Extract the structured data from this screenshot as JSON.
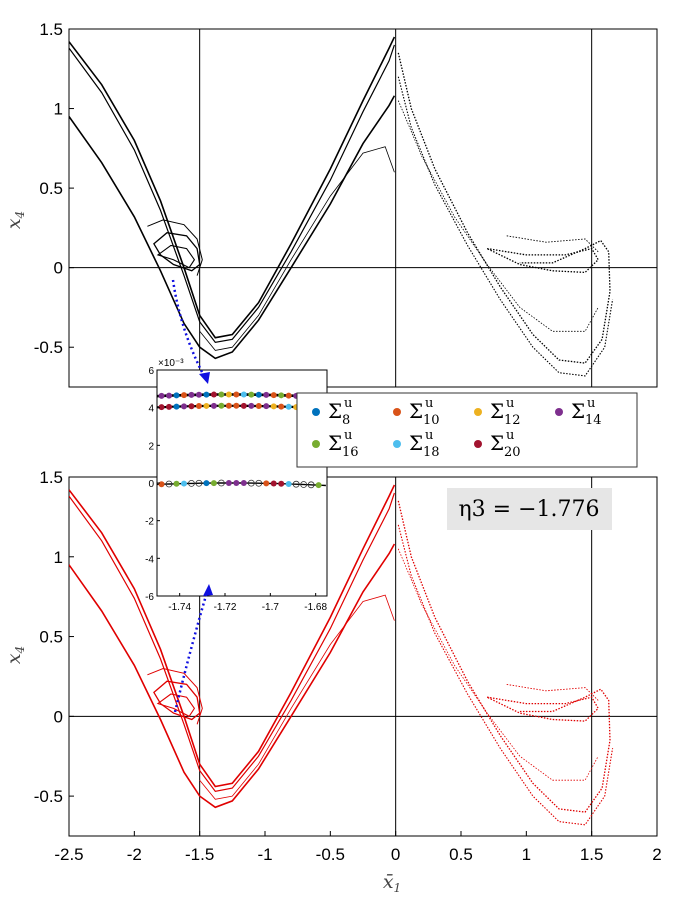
{
  "chart_data": [
    {
      "type": "scatter",
      "name": "top-panel",
      "color": "#000000",
      "xlim": [
        -2.5,
        2
      ],
      "ylim": [
        -0.75,
        1.5
      ],
      "ylabel": "x",
      "ylabel_sub": "4",
      "yticks": [
        "1.5",
        "1",
        "0.5",
        "0",
        "-0.5"
      ],
      "ytick_values": [
        1.5,
        1,
        0.5,
        0,
        -0.5
      ],
      "reference_lines": {
        "x": [
          -1.5,
          0,
          1.5
        ],
        "y": [
          0
        ]
      },
      "curves": [
        {
          "desc": "left outer strands",
          "points": [
            [
              -2.5,
              1.45
            ],
            [
              -2.2,
              1.05
            ],
            [
              -1.9,
              0.55
            ],
            [
              -1.7,
              0.1
            ],
            [
              -1.55,
              -0.2
            ],
            [
              -1.4,
              -0.45
            ],
            [
              -1.25,
              -0.42
            ],
            [
              -1.0,
              -0.15
            ],
            [
              -0.7,
              0.35
            ],
            [
              -0.4,
              0.85
            ],
            [
              -0.1,
              1.3
            ],
            [
              0.0,
              1.45
            ]
          ]
        },
        {
          "desc": "lower band",
          "points": [
            [
              -2.5,
              0.95
            ],
            [
              -2.2,
              0.62
            ],
            [
              -1.95,
              0.25
            ],
            [
              -1.75,
              -0.15
            ],
            [
              -1.55,
              -0.45
            ],
            [
              -1.4,
              -0.57
            ],
            [
              -1.2,
              -0.5
            ],
            [
              -0.9,
              -0.2
            ],
            [
              -0.6,
              0.2
            ],
            [
              -0.3,
              0.65
            ],
            [
              -0.05,
              1.05
            ],
            [
              0.0,
              1.1
            ]
          ]
        },
        {
          "desc": "right lobe",
          "points": [
            [
              0.0,
              1.3
            ],
            [
              0.2,
              0.75
            ],
            [
              0.5,
              0.25
            ],
            [
              0.8,
              -0.15
            ],
            [
              1.05,
              -0.45
            ],
            [
              1.25,
              -0.6
            ],
            [
              1.5,
              -0.58
            ],
            [
              1.6,
              -0.3
            ],
            [
              1.62,
              0.05
            ],
            [
              1.55,
              0.15
            ],
            [
              1.4,
              0.1
            ],
            [
              1.0,
              0.0
            ],
            [
              0.8,
              0.05
            ]
          ]
        }
      ]
    },
    {
      "type": "scatter",
      "name": "bottom-panel",
      "color": "#e00000",
      "xlim": [
        -2.5,
        2
      ],
      "ylim": [
        -0.75,
        1.5
      ],
      "xlabel": "x̄",
      "xlabel_sub": "1",
      "ylabel": "x",
      "ylabel_sub": "4",
      "xticks": [
        "-2.5",
        "-2",
        "-1.5",
        "-1",
        "-0.5",
        "0",
        "0.5",
        "1",
        "1.5",
        "2"
      ],
      "xtick_values": [
        -2.5,
        -2,
        -1.5,
        -1,
        -0.5,
        0,
        0.5,
        1,
        1.5,
        2
      ],
      "yticks": [
        "1.5",
        "1",
        "0.5",
        "0",
        "-0.5"
      ],
      "ytick_values": [
        1.5,
        1,
        0.5,
        0,
        -0.5
      ],
      "reference_lines": {
        "x": [
          -1.5,
          0,
          1.5
        ],
        "y": [
          0
        ]
      },
      "annotation": "η3 = −1.776"
    },
    {
      "type": "scatter",
      "name": "inset",
      "xlim": [
        -1.75,
        -1.675
      ],
      "ylim": [
        -6,
        6
      ],
      "exponent": "×10⁻³",
      "xticks": [
        "-1.74",
        "-1.72",
        "-1.7",
        "-1.68"
      ],
      "xtick_values": [
        -1.74,
        -1.72,
        -1.7,
        -1.68
      ],
      "yticks": [
        "6",
        "4",
        "2",
        "0",
        "-2",
        "-4",
        "-6"
      ],
      "ytick_values": [
        6,
        4,
        2,
        0,
        -2,
        -4,
        -6
      ],
      "legend": [
        {
          "label": "Σ",
          "sup": "u",
          "sub": "8",
          "color": "#0072bd"
        },
        {
          "label": "Σ",
          "sup": "u",
          "sub": "10",
          "color": "#d95319"
        },
        {
          "label": "Σ",
          "sup": "u",
          "sub": "12",
          "color": "#edb120"
        },
        {
          "label": "Σ",
          "sup": "u",
          "sub": "14",
          "color": "#7e2f8e"
        },
        {
          "label": "Σ",
          "sup": "u",
          "sub": "16",
          "color": "#77ac30"
        },
        {
          "label": "Σ",
          "sup": "u",
          "sub": "18",
          "color": "#4dbeee"
        },
        {
          "label": "Σ",
          "sup": "u",
          "sub": "20",
          "color": "#a2142f"
        }
      ],
      "legend_placement": "right of inset"
    }
  ]
}
